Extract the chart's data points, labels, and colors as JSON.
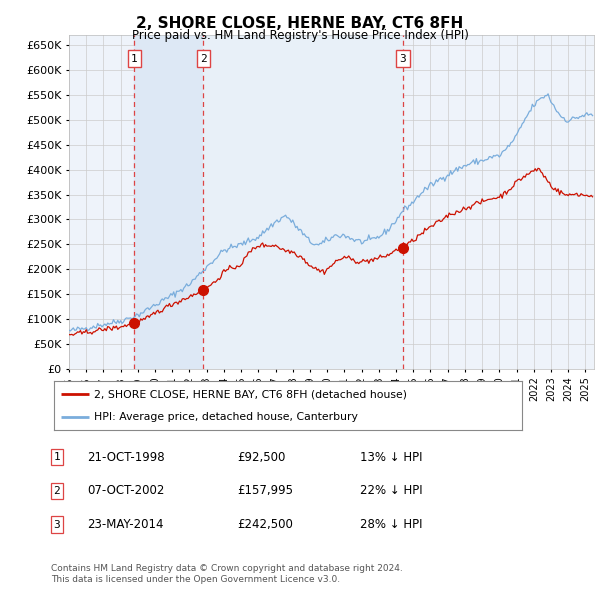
{
  "title": "2, SHORE CLOSE, HERNE BAY, CT6 8FH",
  "subtitle": "Price paid vs. HM Land Registry's House Price Index (HPI)",
  "legend_line1": "2, SHORE CLOSE, HERNE BAY, CT6 8FH (detached house)",
  "legend_line2": "HPI: Average price, detached house, Canterbury",
  "footer1": "Contains HM Land Registry data © Crown copyright and database right 2024.",
  "footer2": "This data is licensed under the Open Government Licence v3.0.",
  "transactions": [
    {
      "num": 1,
      "date": "21-OCT-1998",
      "price": 92500,
      "hpi_rel": "13% ↓ HPI",
      "year": 1998.8
    },
    {
      "num": 2,
      "date": "07-OCT-2002",
      "price": 157995,
      "hpi_rel": "22% ↓ HPI",
      "year": 2002.8
    },
    {
      "num": 3,
      "date": "23-MAY-2014",
      "price": 242500,
      "hpi_rel": "28% ↓ HPI",
      "year": 2014.4
    }
  ],
  "hpi_color": "#7aaddc",
  "price_color": "#cc1100",
  "vline_color": "#dd4444",
  "grid_color": "#cccccc",
  "bg_color": "#ffffff",
  "plot_bg_color": "#eef3fa",
  "span_color": "#dde8f5",
  "ylim": [
    0,
    670000
  ],
  "yticks": [
    0,
    50000,
    100000,
    150000,
    200000,
    250000,
    300000,
    350000,
    400000,
    450000,
    500000,
    550000,
    600000,
    650000
  ],
  "xlim": [
    1995,
    2025.5
  ]
}
